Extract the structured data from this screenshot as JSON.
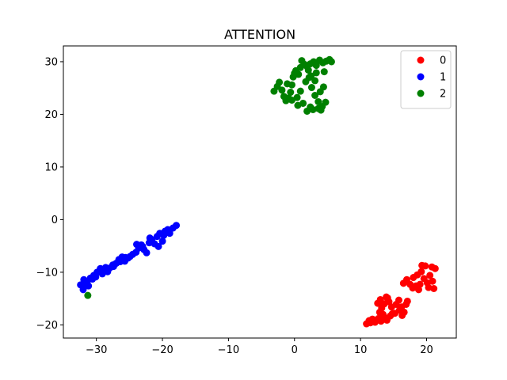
{
  "chart_data": {
    "type": "scatter",
    "title": "ATTENTION",
    "xlabel": "",
    "ylabel": "",
    "xlim": [
      -35,
      24.5
    ],
    "ylim": [
      -22.5,
      33
    ],
    "xticks": [
      -30,
      -20,
      -10,
      0,
      10,
      20
    ],
    "yticks": [
      -20,
      -10,
      0,
      10,
      20,
      30
    ],
    "grid": false,
    "legend_position": "upper-right",
    "series": [
      {
        "name": "0",
        "color": "#ff0000",
        "points": [
          [
            10.9,
            -19.8
          ],
          [
            11.3,
            -19.2
          ],
          [
            11.8,
            -18.9
          ],
          [
            12.2,
            -19.5
          ],
          [
            12.7,
            -18.8
          ],
          [
            13.1,
            -19.3
          ],
          [
            13.6,
            -18.6
          ],
          [
            14.0,
            -19.1
          ],
          [
            14.5,
            -18.3
          ],
          [
            11.5,
            -19.6
          ],
          [
            12.9,
            -17.6
          ],
          [
            13.2,
            -16.8
          ],
          [
            13.6,
            -16.0
          ],
          [
            13.0,
            -15.2
          ],
          [
            13.9,
            -14.7
          ],
          [
            14.3,
            -15.6
          ],
          [
            14.7,
            -16.6
          ],
          [
            14.8,
            -17.9
          ],
          [
            13.4,
            -18.0
          ],
          [
            12.6,
            -15.9
          ],
          [
            15.4,
            -16.1
          ],
          [
            15.8,
            -15.3
          ],
          [
            16.2,
            -16.6
          ],
          [
            16.6,
            -17.6
          ],
          [
            16.3,
            -18.2
          ],
          [
            16.9,
            -16.1
          ],
          [
            17.1,
            -15.5
          ],
          [
            15.9,
            -17.2
          ],
          [
            15.2,
            -17.8
          ],
          [
            14.1,
            -14.9
          ],
          [
            16.5,
            -12.1
          ],
          [
            17.0,
            -11.4
          ],
          [
            17.5,
            -12.3
          ],
          [
            18.0,
            -11.0
          ],
          [
            18.4,
            -12.6
          ],
          [
            18.8,
            -13.3
          ],
          [
            17.9,
            -13.0
          ],
          [
            18.6,
            -10.5
          ],
          [
            19.2,
            -9.9
          ],
          [
            19.6,
            -11.2
          ],
          [
            20.1,
            -12.0
          ],
          [
            20.5,
            -10.6
          ],
          [
            20.9,
            -11.7
          ],
          [
            21.3,
            -9.3
          ],
          [
            20.8,
            -9.0
          ],
          [
            19.8,
            -8.8
          ],
          [
            19.3,
            -8.7
          ],
          [
            21.1,
            -13.1
          ],
          [
            20.3,
            -12.9
          ],
          [
            19.0,
            -12.3
          ]
        ]
      },
      {
        "name": "1",
        "color": "#0000ff",
        "points": [
          [
            -32.4,
            -12.4
          ],
          [
            -32.0,
            -13.3
          ],
          [
            -31.7,
            -12.1
          ],
          [
            -31.9,
            -11.4
          ],
          [
            -31.4,
            -11.8
          ],
          [
            -30.9,
            -11.1
          ],
          [
            -30.4,
            -10.6
          ],
          [
            -30.1,
            -10.9
          ],
          [
            -29.6,
            -9.9
          ],
          [
            -29.1,
            -10.3
          ],
          [
            -29.4,
            -9.3
          ],
          [
            -28.8,
            -9.7
          ],
          [
            -28.3,
            -9.9
          ],
          [
            -28.0,
            -9.2
          ],
          [
            -27.5,
            -8.6
          ],
          [
            -27.0,
            -8.3
          ],
          [
            -26.6,
            -7.6
          ],
          [
            -26.1,
            -7.1
          ],
          [
            -25.7,
            -7.9
          ],
          [
            -25.2,
            -7.3
          ],
          [
            -24.9,
            -7.0
          ],
          [
            -24.5,
            -6.6
          ],
          [
            -24.0,
            -6.2
          ],
          [
            -23.6,
            -5.4
          ],
          [
            -23.2,
            -4.8
          ],
          [
            -22.8,
            -5.7
          ],
          [
            -22.4,
            -6.3
          ],
          [
            -22.0,
            -4.4
          ],
          [
            -21.6,
            -3.8
          ],
          [
            -21.2,
            -4.6
          ],
          [
            -20.8,
            -3.2
          ],
          [
            -20.4,
            -2.6
          ],
          [
            -20.0,
            -4.1
          ],
          [
            -19.6,
            -2.2
          ],
          [
            -19.2,
            -1.9
          ],
          [
            -18.9,
            -2.6
          ],
          [
            -18.4,
            -1.6
          ],
          [
            -17.9,
            -1.1
          ],
          [
            -20.6,
            -5.1
          ],
          [
            -23.9,
            -4.7
          ],
          [
            -30.6,
            -11.3
          ],
          [
            -31.2,
            -12.6
          ],
          [
            -25.6,
            -7.2
          ],
          [
            -27.4,
            -8.9
          ],
          [
            -21.9,
            -3.5
          ],
          [
            -28.6,
            -9.1
          ],
          [
            -26.4,
            -8.0
          ],
          [
            -29.9,
            -10.0
          ],
          [
            -23.0,
            -5.1
          ],
          [
            -19.8,
            -3.0
          ]
        ]
      },
      {
        "name": "2",
        "color": "#008000",
        "points": [
          [
            -3.1,
            24.4
          ],
          [
            -2.6,
            25.3
          ],
          [
            -2.3,
            26.1
          ],
          [
            -1.9,
            24.6
          ],
          [
            -1.6,
            23.4
          ],
          [
            -1.3,
            22.6
          ],
          [
            -0.9,
            23.1
          ],
          [
            -0.6,
            24.2
          ],
          [
            -0.4,
            25.6
          ],
          [
            -0.2,
            27.1
          ],
          [
            0.2,
            28.3
          ],
          [
            0.6,
            27.6
          ],
          [
            0.9,
            28.9
          ],
          [
            1.1,
            30.2
          ],
          [
            1.5,
            29.5
          ],
          [
            1.9,
            29.1
          ],
          [
            2.4,
            29.6
          ],
          [
            2.9,
            30.0
          ],
          [
            3.3,
            29.3
          ],
          [
            3.8,
            30.3
          ],
          [
            4.3,
            29.8
          ],
          [
            4.8,
            30.1
          ],
          [
            5.3,
            30.4
          ],
          [
            5.6,
            30.0
          ],
          [
            2.1,
            28.4
          ],
          [
            2.5,
            27.3
          ],
          [
            1.7,
            26.2
          ],
          [
            2.6,
            25.1
          ],
          [
            3.1,
            23.6
          ],
          [
            3.9,
            24.3
          ],
          [
            4.4,
            25.2
          ],
          [
            3.6,
            22.4
          ],
          [
            2.4,
            21.4
          ],
          [
            1.9,
            20.6
          ],
          [
            2.8,
            20.9
          ],
          [
            3.6,
            21.1
          ],
          [
            4.2,
            21.5
          ],
          [
            4.7,
            22.3
          ],
          [
            1.3,
            22.1
          ],
          [
            0.4,
            23.2
          ],
          [
            -0.4,
            22.7
          ],
          [
            0.0,
            27.8
          ],
          [
            3.1,
            26.4
          ],
          [
            4.5,
            28.1
          ],
          [
            0.9,
            24.4
          ],
          [
            -1.1,
            25.8
          ],
          [
            4.0,
            20.8
          ],
          [
            2.2,
            27.0
          ],
          [
            3.3,
            27.9
          ],
          [
            0.5,
            21.7
          ],
          [
            -31.3,
            -14.4
          ]
        ]
      }
    ]
  }
}
